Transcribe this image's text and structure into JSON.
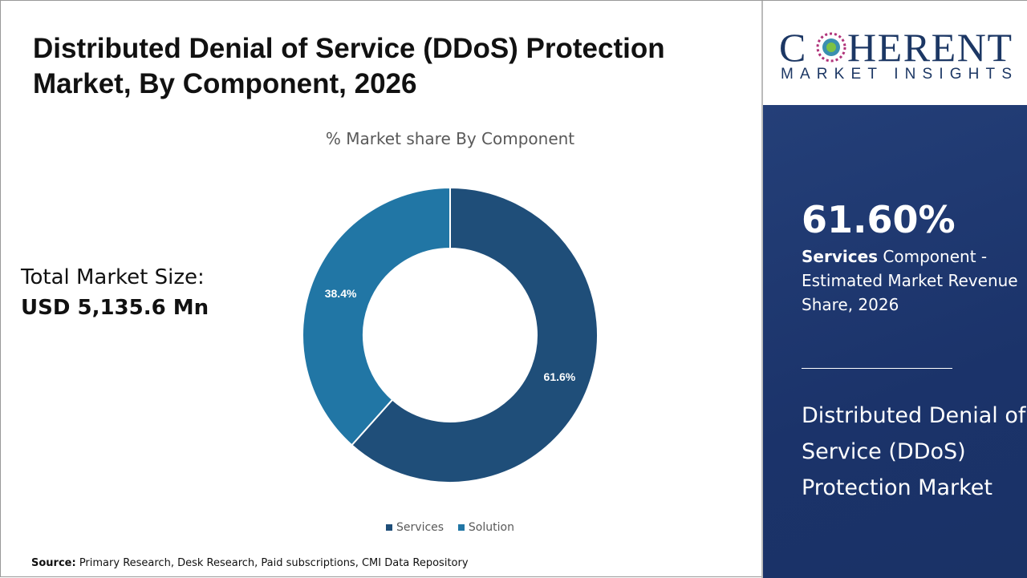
{
  "title": "Distributed Denial of Service (DDoS) Protection Market, By Component, 2026",
  "total_label": "Total Market Size:",
  "total_value": "USD 5,135.6 Mn",
  "source_label": "Source:",
  "source_text": " Primary Research, Desk Research, Paid subscriptions, CMI Data Repository",
  "logo": {
    "line1": "COHERENT",
    "line2": "MARKET INSIGHTS"
  },
  "side": {
    "big": "61.60%",
    "bold": "Services",
    "desc": " Component - Estimated Market Revenue Share, 2026",
    "market": "Distributed Denial of Service (DDoS) Protection Market"
  },
  "chart_data": {
    "type": "pie",
    "donut": true,
    "title": "% Market share By Component",
    "categories": [
      "Services",
      "Solution"
    ],
    "values": [
      61.6,
      38.4
    ],
    "labels": [
      "61.6%",
      "38.4%"
    ],
    "colors": [
      "#1f4e79",
      "#2176a5"
    ],
    "legend": "bottom"
  }
}
